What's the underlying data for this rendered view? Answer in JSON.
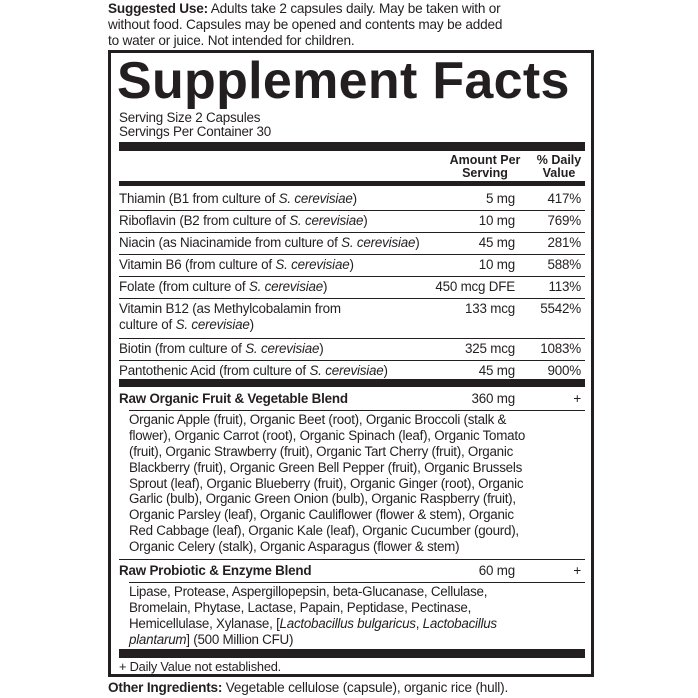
{
  "suggested_use": {
    "label": "Suggested Use:",
    "lines": [
      " Adults take 2 capsules daily. May be taken with or",
      "without food. Capsules may be opened and contents may be added",
      "to water or juice. Not intended for children."
    ]
  },
  "panel": {
    "title": "Supplement Facts",
    "serving_size": "Serving Size 2 Capsules",
    "servings_per_container": "Servings Per Container 30",
    "col_amount": [
      "Amount Per",
      "Serving"
    ],
    "col_dv": [
      "% Daily",
      "Value"
    ],
    "nutrients": [
      {
        "pre": "Thiamin (B1 from culture of ",
        "ital": "S. cerevisiae",
        "post": ")",
        "amount": "5 mg",
        "dv": "417%"
      },
      {
        "pre": "Riboflavin (B2 from culture of ",
        "ital": "S. cerevisiae",
        "post": ")",
        "amount": "10 mg",
        "dv": "769%"
      },
      {
        "pre": "Niacin (as Niacinamide from culture of ",
        "ital": "S. cerevisiae",
        "post": ")",
        "amount": "45 mg",
        "dv": "281%"
      },
      {
        "pre": "Vitamin B6 (from culture of ",
        "ital": "S. cerevisiae",
        "post": ")",
        "amount": "10 mg",
        "dv": "588%"
      },
      {
        "pre": "Folate (from culture of ",
        "ital": "S. cerevisiae",
        "post": ")",
        "amount": "450 mcg DFE",
        "dv": "113%"
      },
      {
        "pre": "Vitamin B12 (as Methylcobalamin from",
        "pre2": "culture of ",
        "ital": "S. cerevisiae",
        "post": ")",
        "amount": "133 mcg",
        "dv": "5542%"
      },
      {
        "pre": "Biotin (from culture of ",
        "ital": "S. cerevisiae",
        "post": ")",
        "amount": "325 mcg",
        "dv": "1083%"
      },
      {
        "pre": "Pantothenic Acid (from culture of ",
        "ital": "S. cerevisiae",
        "post": ")",
        "amount": "45 mg",
        "dv": "900%"
      }
    ],
    "blends": [
      {
        "name": "Raw Organic Fruit & Vegetable Blend",
        "amount": "360 mg",
        "dv": "+",
        "lines": [
          "Organic Apple (fruit), Organic Beet (root), Organic Broccoli (stalk &",
          "flower), Organic Carrot (root), Organic Spinach (leaf), Organic Tomato",
          "(fruit), Organic Strawberry (fruit), Organic Tart Cherry (fruit), Organic",
          "Blackberry (fruit), Organic Green Bell Pepper (fruit), Organic Brussels",
          "Sprout (leaf), Organic Blueberry (fruit), Organic Ginger (root), Organic",
          "Garlic (bulb), Organic Green Onion (bulb), Organic Raspberry (fruit),",
          "Organic Parsley (leaf), Organic Cauliflower (flower & stem), Organic",
          "Red Cabbage (leaf), Organic Kale (leaf), Organic Cucumber (gourd),",
          "Organic Celery (stalk), Organic Asparagus (flower & stem)"
        ]
      },
      {
        "name": "Raw Probiotic & Enzyme Blend",
        "amount": "60 mg",
        "dv": "+",
        "lines": [
          "Lipase, Protease, Aspergillopepsin, beta-Glucanase, Cellulase,",
          "Bromelain, Phytase, Lactase, Papain, Peptidase, Pectinase,",
          "Hemicellulase, Xylanase, ["
        ],
        "ital1": "Lactobacillus bulgaricus",
        "sep": ", ",
        "ital2": "Lactobacillus",
        "ital3": "plantarum",
        "tail": "] (500 Million CFU)"
      }
    ],
    "footnote": "+ Daily Value not established."
  },
  "other_ingredients": {
    "label": "Other Ingredients:",
    "text": " Vegetable cellulose (capsule), organic rice (hull)."
  }
}
